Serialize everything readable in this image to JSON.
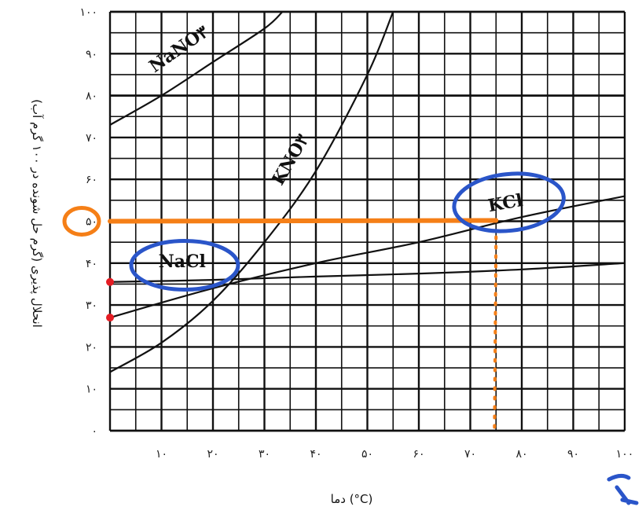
{
  "chart_data": {
    "type": "line",
    "xlabel": "دما (°C)",
    "ylabel": "انحلال پذیری (گرم حل شونده در ۱۰۰ گرم آب)",
    "xlim": [
      0,
      100
    ],
    "ylim": [
      0,
      100
    ],
    "x_ticks": [
      10,
      20,
      30,
      40,
      50,
      60,
      70,
      80,
      90,
      100
    ],
    "x_tick_labels": [
      "۱۰",
      "۲۰",
      "۳۰",
      "۴۰",
      "۵۰",
      "۶۰",
      "۷۰",
      "۸۰",
      "۹۰",
      "۱۰۰"
    ],
    "y_ticks": [
      0,
      10,
      20,
      30,
      40,
      50,
      60,
      70,
      80,
      90,
      100
    ],
    "y_tick_labels": [
      "۰",
      "۱۰",
      "۲۰",
      "۳۰",
      "۴۰",
      "۵۰",
      "۶۰",
      "۷۰",
      "۸۰",
      "۹۰",
      "۱۰۰"
    ],
    "grid": true,
    "series": [
      {
        "name": "NaNO۳",
        "x": [
          0,
          10,
          20,
          30,
          33.5
        ],
        "y": [
          73,
          80,
          88,
          96,
          100
        ]
      },
      {
        "name": "KNO۳",
        "x": [
          0,
          10,
          20,
          30,
          40,
          50,
          55
        ],
        "y": [
          14,
          21,
          31,
          45,
          62,
          85,
          100
        ]
      },
      {
        "name": "KCl",
        "x": [
          0,
          20,
          40,
          60,
          80,
          100
        ],
        "y": [
          27,
          34,
          40,
          45,
          51,
          56
        ]
      },
      {
        "name": "NaCl",
        "x": [
          0,
          20,
          40,
          60,
          80,
          100
        ],
        "y": [
          35.5,
          36,
          36.8,
          37.5,
          38.5,
          40
        ]
      }
    ],
    "annotations": {
      "highlight_y": 50,
      "highlight_x": 75,
      "marked_points": [
        [
          0,
          35.5
        ],
        [
          0,
          27
        ]
      ],
      "circled_labels": [
        "KCl",
        "NaCl"
      ],
      "circled_tick": "۵۰"
    },
    "colors": {
      "grid": "#111111",
      "curve": "#111111",
      "highlight": "#f57f17",
      "circle": "#2a55c9",
      "marker": "#e51c23"
    }
  }
}
